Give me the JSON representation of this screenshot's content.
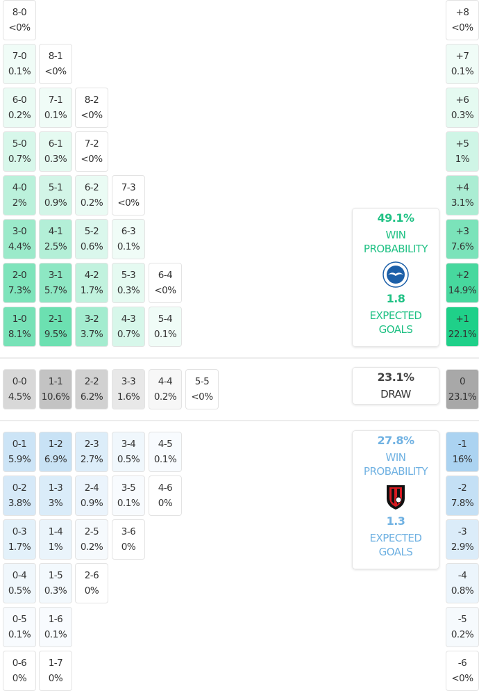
{
  "home_rows": [
    [
      [
        "8-0",
        "<0%"
      ]
    ],
    [
      [
        "7-0",
        "0.1%"
      ],
      [
        "8-1",
        "<0%"
      ]
    ],
    [
      [
        "6-0",
        "0.2%"
      ],
      [
        "7-1",
        "0.1%"
      ],
      [
        "8-2",
        "<0%"
      ]
    ],
    [
      [
        "5-0",
        "0.7%"
      ],
      [
        "6-1",
        "0.3%"
      ],
      [
        "7-2",
        "<0%"
      ]
    ],
    [
      [
        "4-0",
        "2%"
      ],
      [
        "5-1",
        "0.9%"
      ],
      [
        "6-2",
        "0.2%"
      ],
      [
        "7-3",
        "<0%"
      ]
    ],
    [
      [
        "3-0",
        "4.4%"
      ],
      [
        "4-1",
        "2.5%"
      ],
      [
        "5-2",
        "0.6%"
      ],
      [
        "6-3",
        "0.1%"
      ]
    ],
    [
      [
        "2-0",
        "7.3%"
      ],
      [
        "3-1",
        "5.7%"
      ],
      [
        "4-2",
        "1.7%"
      ],
      [
        "5-3",
        "0.3%"
      ],
      [
        "6-4",
        "<0%"
      ]
    ],
    [
      [
        "1-0",
        "8.1%"
      ],
      [
        "2-1",
        "9.5%"
      ],
      [
        "3-2",
        "3.7%"
      ],
      [
        "4-3",
        "0.7%"
      ],
      [
        "5-4",
        "0.1%"
      ]
    ]
  ],
  "draw_row": [
    [
      "0-0",
      "4.5%"
    ],
    [
      "1-1",
      "10.6%"
    ],
    [
      "2-2",
      "6.2%"
    ],
    [
      "3-3",
      "1.6%"
    ],
    [
      "4-4",
      "0.2%"
    ],
    [
      "5-5",
      "<0%"
    ]
  ],
  "away_rows": [
    [
      [
        "0-1",
        "5.9%"
      ],
      [
        "1-2",
        "6.9%"
      ],
      [
        "2-3",
        "2.7%"
      ],
      [
        "3-4",
        "0.5%"
      ],
      [
        "4-5",
        "0.1%"
      ]
    ],
    [
      [
        "0-2",
        "3.8%"
      ],
      [
        "1-3",
        "3%"
      ],
      [
        "2-4",
        "0.9%"
      ],
      [
        "3-5",
        "0.1%"
      ],
      [
        "4-6",
        "0%"
      ]
    ],
    [
      [
        "0-3",
        "1.7%"
      ],
      [
        "1-4",
        "1%"
      ],
      [
        "2-5",
        "0.2%"
      ],
      [
        "3-6",
        "0%"
      ]
    ],
    [
      [
        "0-4",
        "0.5%"
      ],
      [
        "1-5",
        "0.3%"
      ],
      [
        "2-6",
        "0%"
      ]
    ],
    [
      [
        "0-5",
        "0.1%"
      ],
      [
        "1-6",
        "0.1%"
      ]
    ],
    [
      [
        "0-6",
        "0%"
      ],
      [
        "1-7",
        "0%"
      ]
    ]
  ],
  "margins_home": [
    [
      "+8",
      "<0%"
    ],
    [
      "+7",
      "0.1%"
    ],
    [
      "+6",
      "0.3%"
    ],
    [
      "+5",
      "1%"
    ],
    [
      "+4",
      "3.1%"
    ],
    [
      "+3",
      "7.6%"
    ],
    [
      "+2",
      "14.9%"
    ],
    [
      "+1",
      "22.1%"
    ]
  ],
  "margin_draw": [
    "0",
    "23.1%"
  ],
  "margins_away": [
    [
      "-1",
      "16%"
    ],
    [
      "-2",
      "7.8%"
    ],
    [
      "-3",
      "2.9%"
    ],
    [
      "-4",
      "0.8%"
    ],
    [
      "-5",
      "0.2%"
    ],
    [
      "-6",
      "<0%"
    ]
  ],
  "home_card": {
    "win_pct": "49.1%",
    "win_label_1": "WIN",
    "win_label_2": "PROBABILITY",
    "xg": "1.8",
    "xg_label_1": "EXPECTED",
    "xg_label_2": "GOALS",
    "crest": "brighton-crest-icon"
  },
  "draw_card": {
    "pct": "23.1%",
    "label": "DRAW"
  },
  "away_card": {
    "win_pct": "27.8%",
    "win_label_1": "WIN",
    "win_label_2": "PROBABILITY",
    "xg": "1.3",
    "xg_label_1": "EXPECTED",
    "xg_label_2": "GOALS",
    "crest": "bournemouth-crest-icon"
  },
  "colors": {
    "home": "#1fd089",
    "away": "#9ccbee",
    "draw": "#a8a8a8",
    "home_text": "#1fc184",
    "away_text": "#6fb1e2"
  }
}
